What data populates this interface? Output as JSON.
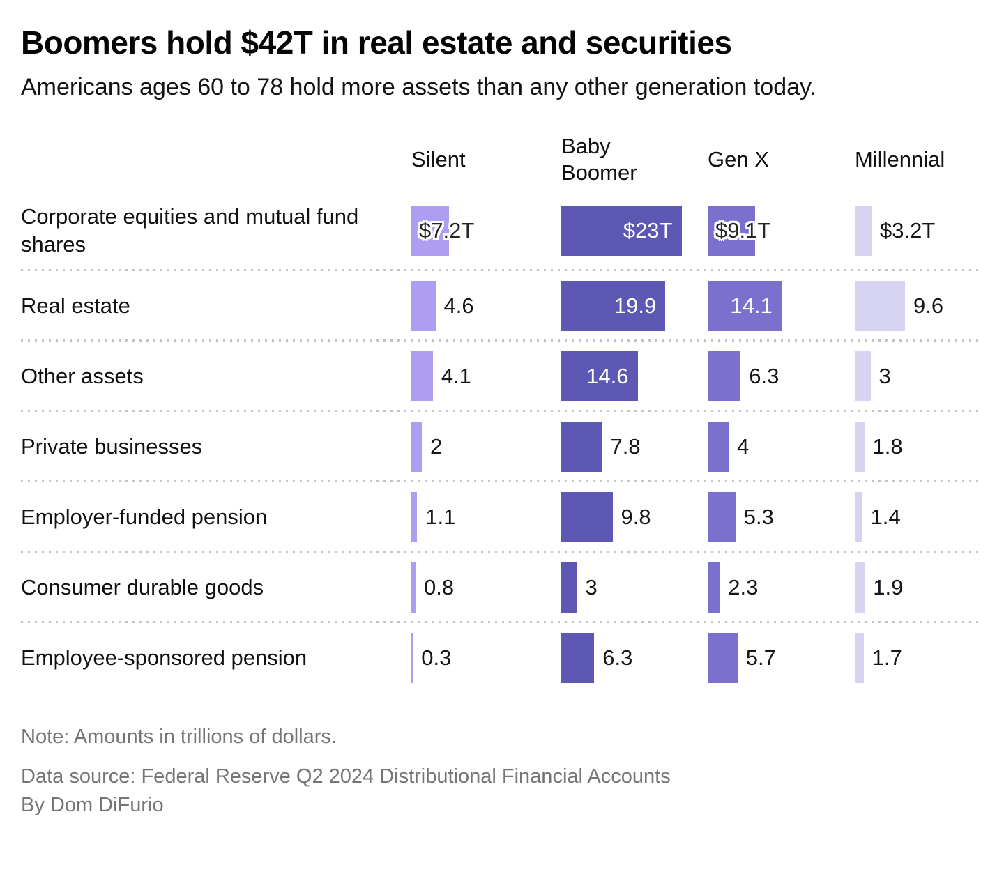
{
  "title": "Boomers hold $42T in real estate and securities",
  "subtitle": "Americans ages 60 to 78 hold more assets than any other generation today.",
  "columns": [
    {
      "name": "Silent",
      "color": "#ad9df3"
    },
    {
      "name": "Baby Boomer",
      "color": "#5e58b5"
    },
    {
      "name": "Gen X",
      "color": "#7b70cd"
    },
    {
      "name": "Millennial",
      "color": "#d7d3f3"
    }
  ],
  "rows": [
    {
      "label": "Corporate equities and mutual fund shares",
      "cells": [
        {
          "value": 7.2,
          "label": "$7.2T",
          "mode": "overlay"
        },
        {
          "value": 23,
          "label": "$23T",
          "mode": "inside"
        },
        {
          "value": 9.1,
          "label": "$9.1T",
          "mode": "overlay"
        },
        {
          "value": 3.2,
          "label": "$3.2T",
          "mode": "outside"
        }
      ]
    },
    {
      "label": "Real estate",
      "cells": [
        {
          "value": 4.6,
          "label": "4.6",
          "mode": "outside"
        },
        {
          "value": 19.9,
          "label": "19.9",
          "mode": "inside"
        },
        {
          "value": 14.1,
          "label": "14.1",
          "mode": "inside"
        },
        {
          "value": 9.6,
          "label": "9.6",
          "mode": "outside"
        }
      ]
    },
    {
      "label": "Other assets",
      "cells": [
        {
          "value": 4.1,
          "label": "4.1",
          "mode": "outside"
        },
        {
          "value": 14.6,
          "label": "14.6",
          "mode": "inside"
        },
        {
          "value": 6.3,
          "label": "6.3",
          "mode": "outside"
        },
        {
          "value": 3,
          "label": "3",
          "mode": "outside"
        }
      ]
    },
    {
      "label": "Private businesses",
      "cells": [
        {
          "value": 2,
          "label": "2",
          "mode": "outside"
        },
        {
          "value": 7.8,
          "label": "7.8",
          "mode": "outside"
        },
        {
          "value": 4,
          "label": "4",
          "mode": "outside"
        },
        {
          "value": 1.8,
          "label": "1.8",
          "mode": "outside"
        }
      ]
    },
    {
      "label": "Employer-funded pension",
      "cells": [
        {
          "value": 1.1,
          "label": "1.1",
          "mode": "outside"
        },
        {
          "value": 9.8,
          "label": "9.8",
          "mode": "outside"
        },
        {
          "value": 5.3,
          "label": "5.3",
          "mode": "outside"
        },
        {
          "value": 1.4,
          "label": "1.4",
          "mode": "outside"
        }
      ]
    },
    {
      "label": "Consumer durable goods",
      "cells": [
        {
          "value": 0.8,
          "label": "0.8",
          "mode": "outside"
        },
        {
          "value": 3,
          "label": "3",
          "mode": "outside"
        },
        {
          "value": 2.3,
          "label": "2.3",
          "mode": "outside"
        },
        {
          "value": 1.9,
          "label": "1.9",
          "mode": "outside"
        }
      ]
    },
    {
      "label": "Employee-sponsored pension",
      "cells": [
        {
          "value": 0.3,
          "label": "0.3",
          "mode": "outside"
        },
        {
          "value": 6.3,
          "label": "6.3",
          "mode": "outside"
        },
        {
          "value": 5.7,
          "label": "5.7",
          "mode": "outside"
        },
        {
          "value": 1.7,
          "label": "1.7",
          "mode": "outside"
        }
      ]
    }
  ],
  "footer": {
    "note": "Note: Amounts in trillions of dollars.",
    "source": "Data source: Federal Reserve Q2 2024 Distributional Financial Accounts",
    "byline": "By Dom DiFurio"
  },
  "chart_data": {
    "type": "bar",
    "title": "Boomers hold $42T in real estate and securities",
    "subtitle": "Americans ages 60 to 78 hold more assets than any other generation today.",
    "unit": "trillions of dollars",
    "orientation": "horizontal",
    "categories": [
      "Corporate equities and mutual fund shares",
      "Real estate",
      "Other assets",
      "Private businesses",
      "Employer-funded pension",
      "Consumer durable goods",
      "Employee-sponsored pension"
    ],
    "series": [
      {
        "name": "Silent",
        "color": "#ad9df3",
        "values": [
          7.2,
          4.6,
          4.1,
          2,
          1.1,
          0.8,
          0.3
        ]
      },
      {
        "name": "Baby Boomer",
        "color": "#5e58b5",
        "values": [
          23,
          19.9,
          14.6,
          7.8,
          9.8,
          3,
          6.3
        ]
      },
      {
        "name": "Gen X",
        "color": "#7b70cd",
        "values": [
          9.1,
          14.1,
          6.3,
          4,
          5.3,
          2.3,
          5.7
        ]
      },
      {
        "name": "Millennial",
        "color": "#d7d3f3",
        "values": [
          3.2,
          9.6,
          3,
          1.8,
          1.4,
          1.9,
          1.7
        ]
      }
    ],
    "data_labels_row1": [
      "$7.2T",
      "$23T",
      "$9.1T",
      "$3.2T"
    ],
    "legend_position": "top-columns",
    "grid": "dotted-row-separators",
    "xlim": [
      0,
      23
    ]
  }
}
